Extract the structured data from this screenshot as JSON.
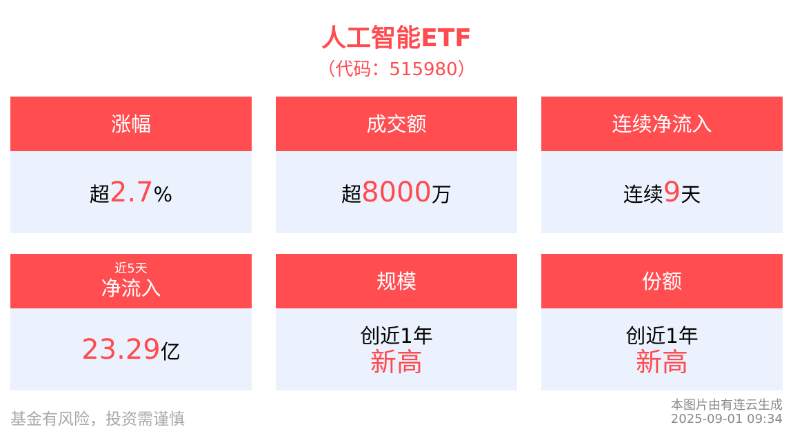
{
  "header": {
    "title": "人工智能ETF",
    "code": "（代码：515980）"
  },
  "cards": [
    {
      "label": "涨幅",
      "prefix": "超",
      "value": "2.7",
      "suffix": "%"
    },
    {
      "label": "成交额",
      "prefix": "超",
      "value": "8000",
      "suffix": "万"
    },
    {
      "label": "连续净流入",
      "prefix": "连续",
      "value": "9",
      "suffix": "天"
    },
    {
      "sublabel": "近5天",
      "label": "净流入",
      "value": "23.29",
      "suffix": "亿"
    },
    {
      "label": "规模",
      "line1": "创近1年",
      "line2": "新高"
    },
    {
      "label": "份额",
      "line1": "创近1年",
      "line2": "新高"
    }
  ],
  "footer": {
    "disclaimer": "基金有风险，投资需谨慎",
    "generator": "本图片由有连云生成",
    "timestamp": "2025-09-01 09:34"
  },
  "colors": {
    "accent": "#ff4d50",
    "card_body": "#ecf2fd"
  }
}
